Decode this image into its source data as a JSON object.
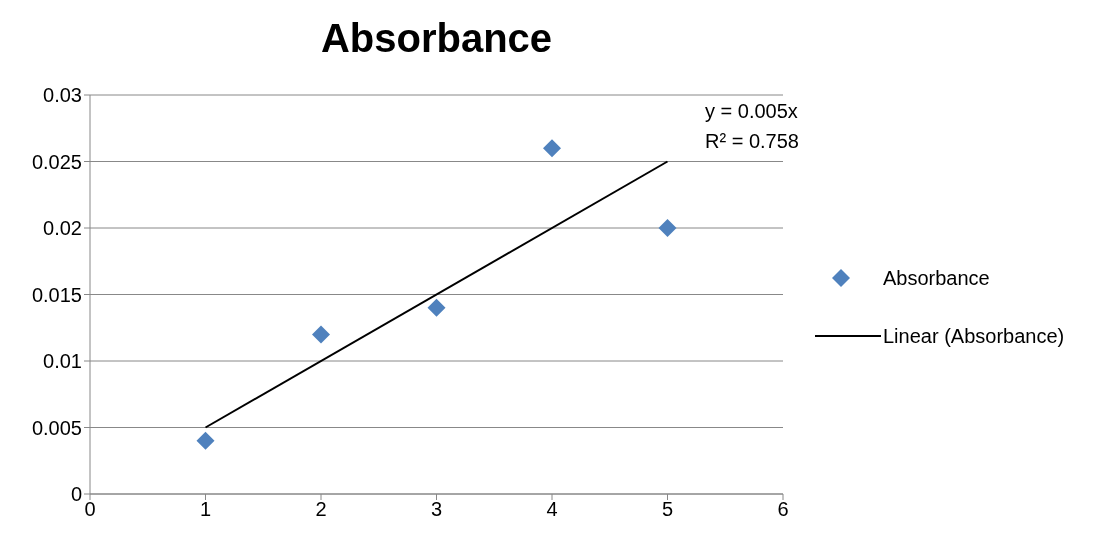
{
  "chart_data": {
    "type": "scatter",
    "title": "Absorbance",
    "series": [
      {
        "name": "Absorbance",
        "type": "scatter",
        "marker": "diamond",
        "color": "#4f81bd",
        "x": [
          1,
          2,
          3,
          4,
          5
        ],
        "values": [
          0.004,
          0.012,
          0.014,
          0.026,
          0.02
        ]
      },
      {
        "name": "Linear (Absorbance)",
        "type": "line",
        "marker": "none",
        "color": "#000000",
        "x": [
          1,
          5
        ],
        "values": [
          0.005,
          0.025
        ]
      }
    ],
    "annotations": [
      "y = 0.005x",
      "R² = 0.758"
    ],
    "xlim": [
      0,
      6
    ],
    "xticks": [
      0,
      1,
      2,
      3,
      4,
      5,
      6
    ],
    "ylim": [
      0,
      0.03
    ],
    "yticks": [
      0,
      0.005,
      0.01,
      0.015,
      0.02,
      0.025,
      0.03
    ],
    "grid": "y",
    "legend": "right"
  }
}
